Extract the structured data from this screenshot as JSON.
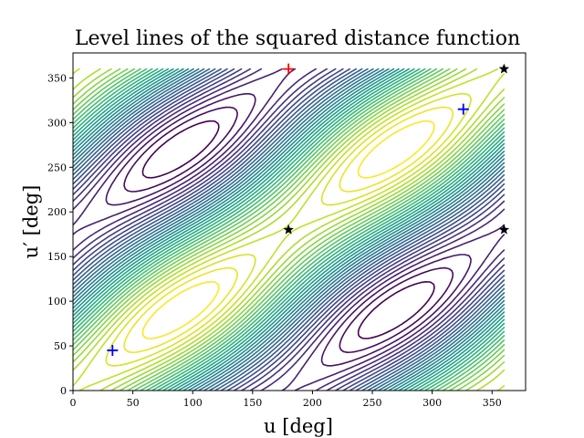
{
  "chart_data": {
    "type": "contour",
    "title": "Level lines of the squared distance function",
    "xlabel": "u [deg]",
    "ylabel": "u′ [deg]",
    "xlim": [
      0,
      378
    ],
    "ylim": [
      0,
      378
    ],
    "x_ticks": [
      0,
      50,
      100,
      150,
      200,
      250,
      300,
      350
    ],
    "y_ticks": [
      0,
      50,
      100,
      150,
      200,
      250,
      300,
      350
    ],
    "data_domain": {
      "u": [
        0,
        360
      ],
      "u_prime": [
        0,
        360
      ]
    },
    "colormap": "viridis",
    "grid": false,
    "legend": "none",
    "markers": [
      {
        "symbol": "plus",
        "color": "#ff0000",
        "x": 180,
        "y": 360
      },
      {
        "symbol": "plus",
        "color": "#0000ff",
        "x": 33,
        "y": 45
      },
      {
        "symbol": "plus",
        "color": "#0000ff",
        "x": 326,
        "y": 315
      },
      {
        "symbol": "star",
        "color": "#000000",
        "x": 180,
        "y": 180
      },
      {
        "symbol": "star",
        "color": "#000000",
        "x": 360,
        "y": 180
      },
      {
        "symbol": "star",
        "color": "#000000",
        "x": 360,
        "y": 360
      }
    ]
  }
}
